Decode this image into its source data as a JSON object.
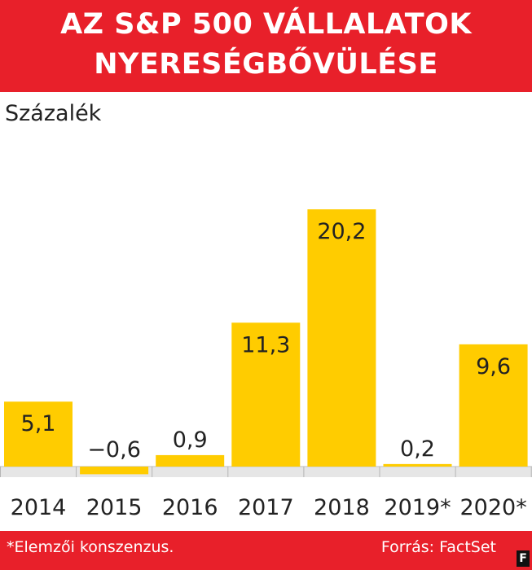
{
  "title": {
    "line1": "AZ S&P 500 VÁLLALATOK",
    "line2": "NYERESÉGBŐVÜLÉSE"
  },
  "unit_label": "Százalék",
  "footnote": "*Elemzői konszenzus.",
  "source": "Forrás: FactSet",
  "logo": "F",
  "colors": {
    "band": "#e8202a",
    "bar": "#ffcc00",
    "text": "#222222",
    "baseline": "#cfcfcf"
  },
  "chart_data": {
    "type": "bar",
    "categories": [
      "2014",
      "2015",
      "2016",
      "2017",
      "2018",
      "2019*",
      "2020*"
    ],
    "values": [
      5.1,
      -0.6,
      0.9,
      11.3,
      20.2,
      0.2,
      9.6
    ],
    "value_labels": [
      "5,1",
      "−0,6",
      "0,9",
      "11,3",
      "20,2",
      "0,2",
      "9,6"
    ],
    "ylabel": "Százalék",
    "grid": false,
    "legend": "none"
  }
}
